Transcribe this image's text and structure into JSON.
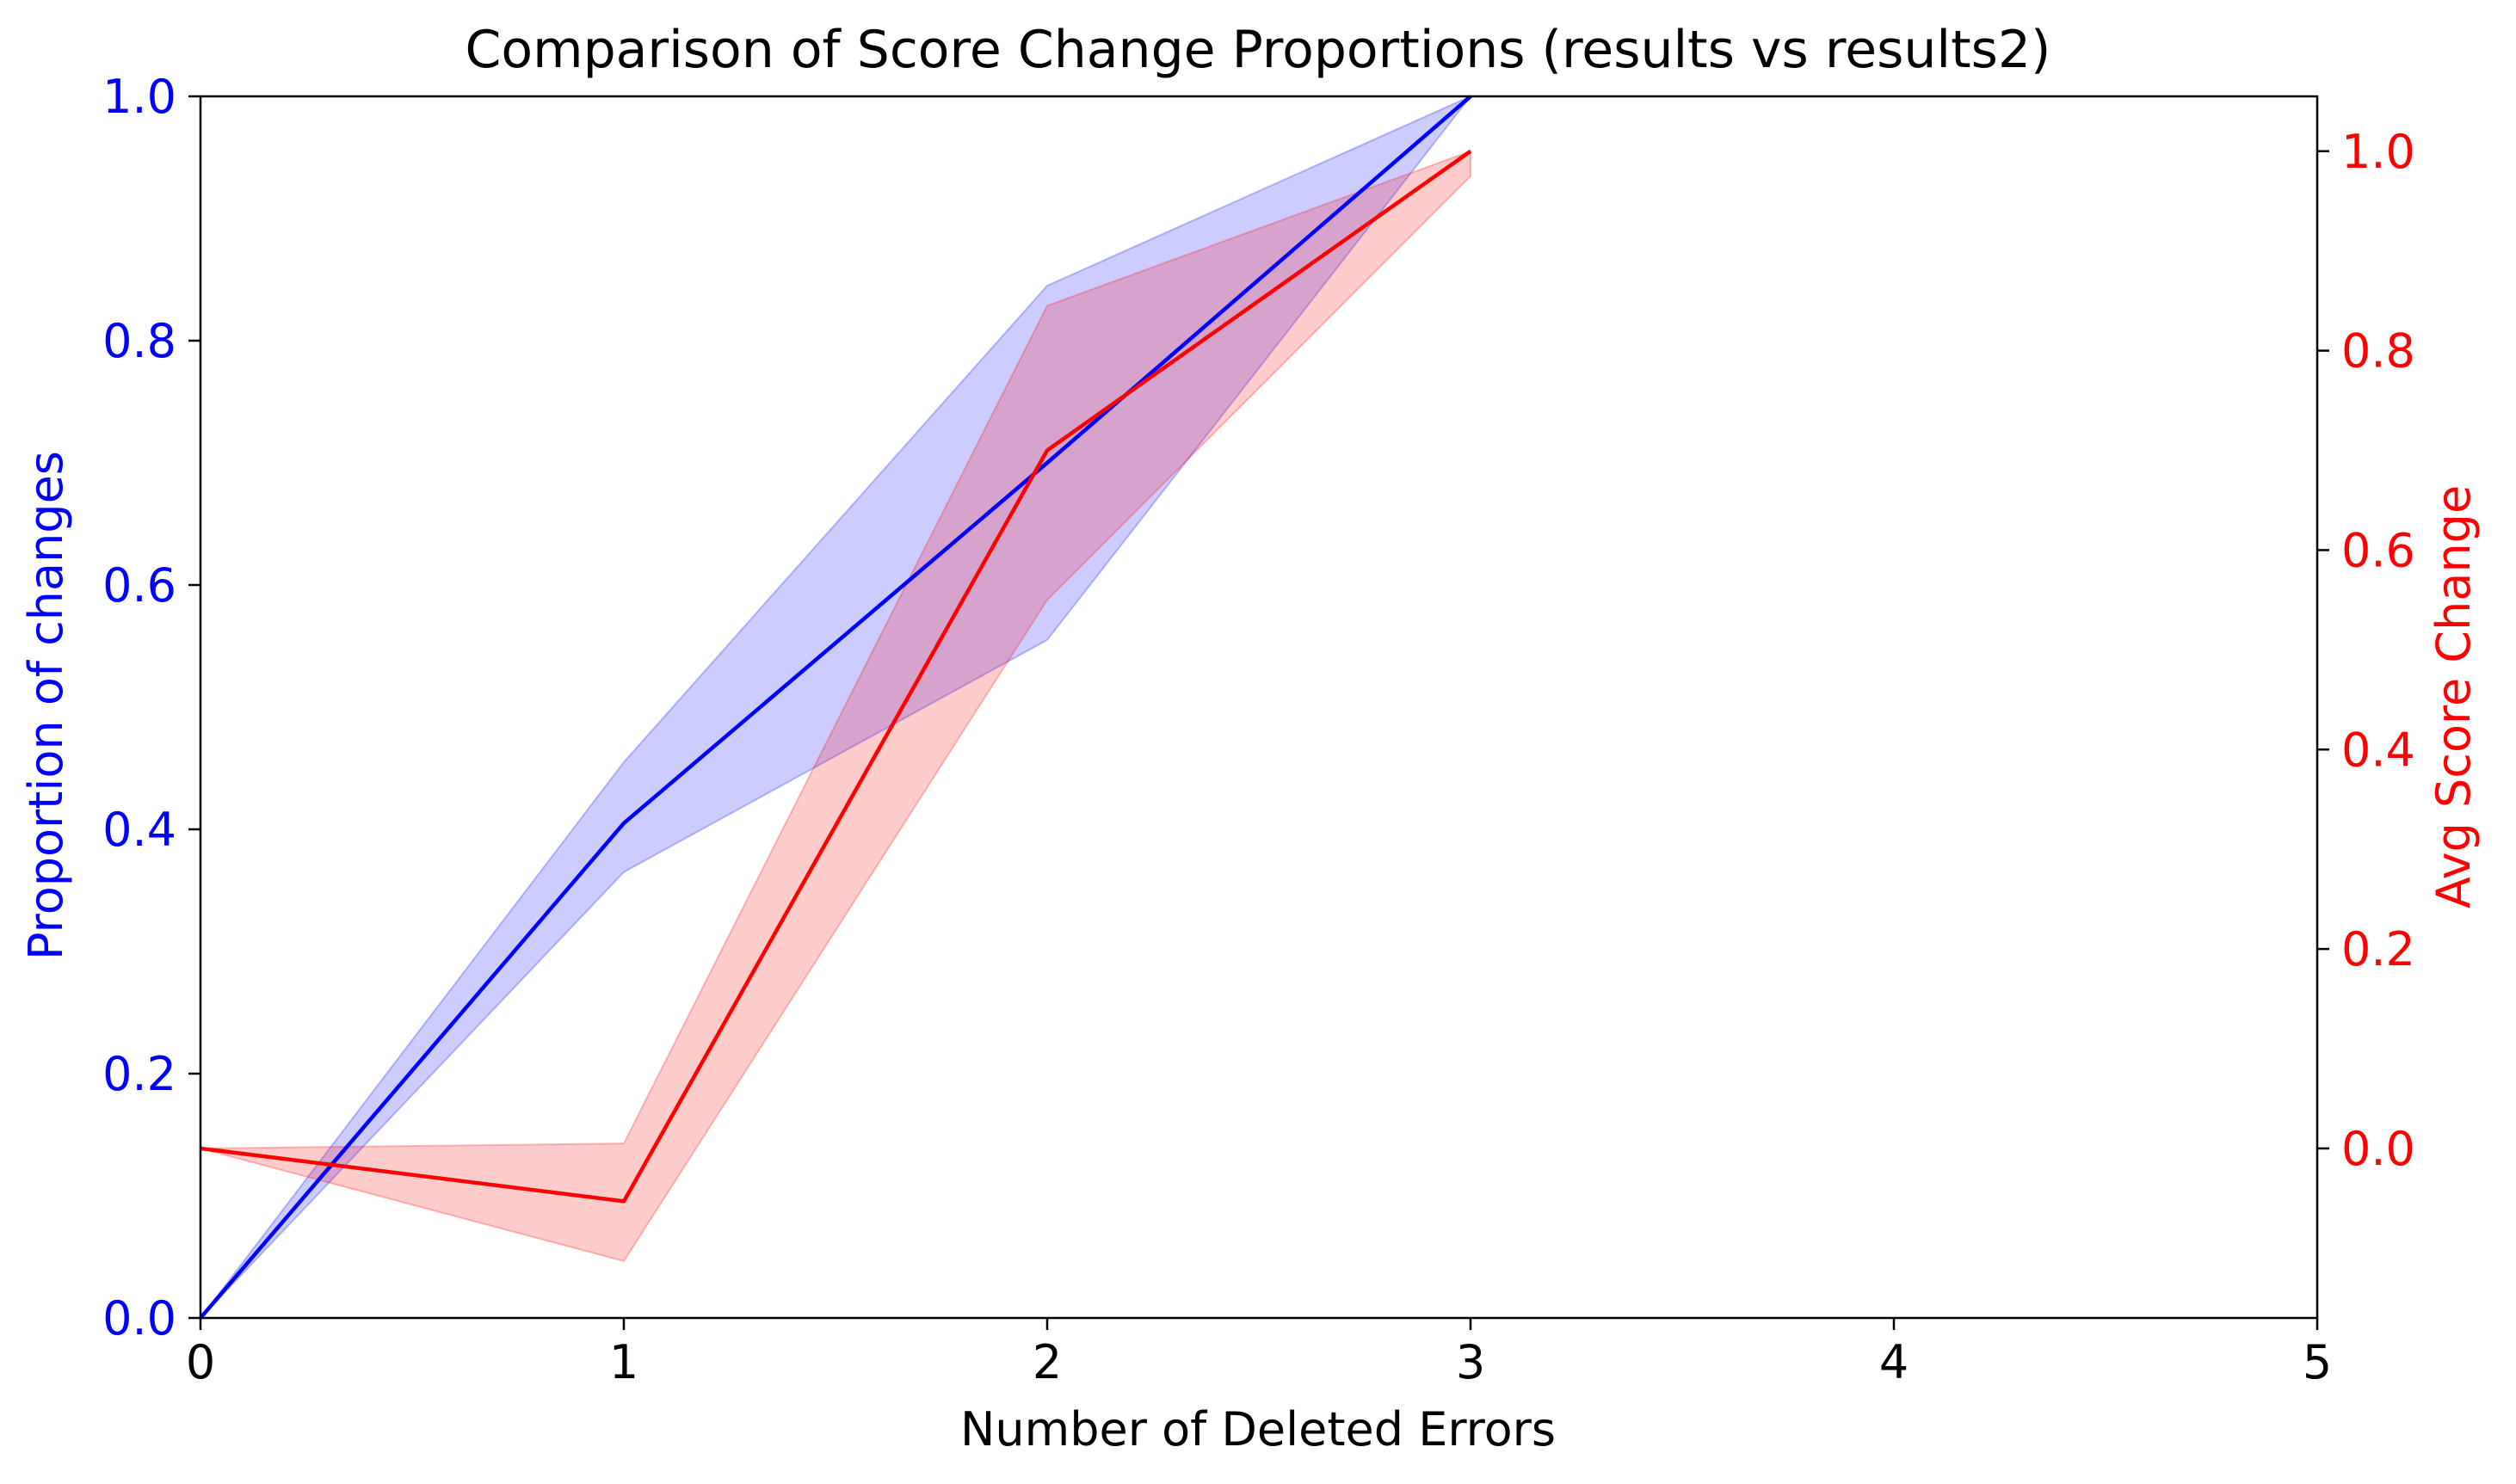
{
  "chart_data": {
    "type": "line",
    "title": "Comparison of Score Change Proportions (results vs results2)",
    "xlabel": "Number of Deleted Errors",
    "ylabel_left": "Proportion of changes",
    "ylabel_right": "Avg Score Change",
    "xlim": [
      0,
      5
    ],
    "ylim_left": [
      0,
      1
    ],
    "ylim_right": [
      -0.17,
      1.055
    ],
    "x_ticks": [
      "0",
      "1",
      "2",
      "3",
      "4",
      "5"
    ],
    "y_ticks_left": [
      "0.0",
      "0.2",
      "0.4",
      "0.6",
      "0.8",
      "1.0"
    ],
    "y_ticks_right": [
      "0.0",
      "0.2",
      "0.4",
      "0.6",
      "0.8",
      "1.0"
    ],
    "grid": false,
    "legend": "none",
    "series": [
      {
        "axis": "left",
        "color": "#0000ff",
        "x": [
          0,
          1,
          2,
          3
        ],
        "values": [
          0.0,
          0.405,
          0.7,
          1.0
        ],
        "band_lower": [
          0.0,
          0.365,
          0.555,
          1.0
        ],
        "band_upper": [
          0.0,
          0.455,
          0.845,
          1.0
        ]
      },
      {
        "axis": "right",
        "color": "#ff0000",
        "x": [
          0,
          1,
          2,
          3
        ],
        "values": [
          0.0,
          -0.053,
          0.7,
          1.0
        ],
        "band_lower": [
          0.0,
          -0.113,
          0.55,
          0.975
        ],
        "band_upper": [
          0.0,
          0.005,
          0.845,
          1.0
        ]
      }
    ]
  }
}
